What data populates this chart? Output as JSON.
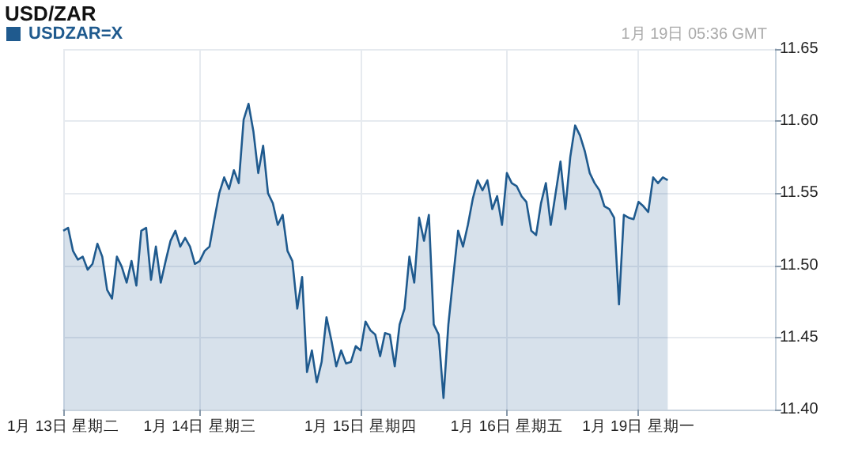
{
  "chart_data": {
    "type": "area",
    "title": "USD/ZAR",
    "subtitle": "1月 19日 05:36 GMT",
    "categories": [
      "1月 13日 星期二",
      null,
      null,
      null,
      null,
      null,
      null,
      null,
      null,
      null,
      null,
      null,
      null,
      null,
      null,
      null,
      null,
      null,
      null,
      null,
      null,
      null,
      null,
      null,
      null,
      null,
      null,
      null,
      "1月 14日 星期三",
      null,
      null,
      null,
      null,
      null,
      null,
      null,
      null,
      null,
      null,
      null,
      null,
      null,
      null,
      null,
      null,
      null,
      null,
      null,
      null,
      null,
      null,
      null,
      null,
      null,
      null,
      null,
      null,
      null,
      null,
      null,
      null,
      "1月 15日 星期四",
      null,
      null,
      null,
      null,
      null,
      null,
      null,
      null,
      null,
      null,
      null,
      null,
      null,
      null,
      null,
      null,
      null,
      null,
      null,
      null,
      null,
      null,
      null,
      null,
      null,
      null,
      null,
      null,
      null,
      "1月 16日 星期五",
      null,
      null,
      null,
      null,
      null,
      null,
      null,
      null,
      null,
      null,
      null,
      null,
      null,
      null,
      null,
      null,
      null,
      null,
      null,
      null,
      null,
      null,
      null,
      null,
      null,
      null,
      "1月 19日 星期一",
      null,
      null,
      null,
      null,
      null,
      null,
      null,
      null,
      null,
      null,
      null,
      null,
      null,
      null,
      null,
      null,
      null,
      null,
      null,
      null,
      null,
      null,
      null,
      null,
      null,
      null,
      null,
      null
    ],
    "series": [
      {
        "name": "USDZAR=X",
        "color": "#1f5a8e",
        "values": [
          11.524,
          11.526,
          11.51,
          11.504,
          11.506,
          11.497,
          11.501,
          11.515,
          11.506,
          11.483,
          11.477,
          11.506,
          11.499,
          11.488,
          11.503,
          11.486,
          11.524,
          11.526,
          11.49,
          11.513,
          11.488,
          11.503,
          11.517,
          11.524,
          11.513,
          11.519,
          11.513,
          11.501,
          11.503,
          11.51,
          11.513,
          11.532,
          11.55,
          11.561,
          11.553,
          11.566,
          11.557,
          11.601,
          11.612,
          11.593,
          11.564,
          11.583,
          11.55,
          11.543,
          11.528,
          11.535,
          11.51,
          11.503,
          11.47,
          11.492,
          11.426,
          11.441,
          11.419,
          11.433,
          11.464,
          11.448,
          11.43,
          11.441,
          11.432,
          11.433,
          11.444,
          11.441,
          11.461,
          11.455,
          11.452,
          11.437,
          11.453,
          11.452,
          11.43,
          11.459,
          11.47,
          11.506,
          11.488,
          11.533,
          11.517,
          11.535,
          11.459,
          11.452,
          11.408,
          11.459,
          11.492,
          11.524,
          11.513,
          11.528,
          11.546,
          11.559,
          11.552,
          11.559,
          11.539,
          11.548,
          11.528,
          11.564,
          11.557,
          11.555,
          11.548,
          11.544,
          11.524,
          11.521,
          11.543,
          11.557,
          11.528,
          11.55,
          11.572,
          11.539,
          11.575,
          11.597,
          11.59,
          11.579,
          11.564,
          11.557,
          11.552,
          11.541,
          11.539,
          11.533,
          11.473,
          11.535,
          11.533,
          11.532,
          11.544,
          11.541,
          11.537,
          11.561,
          11.557,
          11.561,
          11.559,
          null,
          null,
          null,
          null,
          null,
          null,
          null,
          null,
          null,
          null,
          null,
          null,
          null,
          null,
          null,
          null,
          null,
          null,
          null,
          null,
          null,
          null
        ]
      }
    ],
    "ylim": [
      11.4,
      11.65
    ],
    "yticks": [
      {
        "value": 11.4,
        "label": "11.40"
      },
      {
        "value": 11.45,
        "label": "11.45"
      },
      {
        "value": 11.5,
        "label": "11.50"
      },
      {
        "value": 11.55,
        "label": "11.55"
      },
      {
        "value": 11.6,
        "label": "11.60"
      },
      {
        "value": 11.65,
        "label": "11.65"
      }
    ],
    "grid": true,
    "legend": "top left",
    "marker": "none",
    "line_style": "solid"
  }
}
